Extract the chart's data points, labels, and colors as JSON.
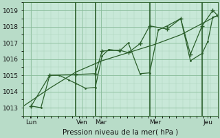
{
  "xlabel": "Pression niveau de la mer( hPa )",
  "bg_color": "#b8dcc8",
  "plot_bg_color": "#c8e8d8",
  "grid_major_color": "#88bb99",
  "grid_minor_color": "#aad4bb",
  "line_color": "#2a5e2a",
  "vline_color": "#2a5e2a",
  "ylim": [
    1012.5,
    1019.5
  ],
  "yticks": [
    1013,
    1014,
    1015,
    1016,
    1017,
    1018,
    1019
  ],
  "xlim": [
    0,
    1.0
  ],
  "xtick_positions": [
    0.04,
    0.3,
    0.4,
    0.68,
    0.95
  ],
  "xtick_labels": [
    "Lun",
    "Ven",
    "Mar",
    "Mer",
    "Jeu"
  ],
  "vline_positions": [
    0.27,
    0.37,
    0.65,
    0.92
  ],
  "trend_x": [
    0.0,
    0.135,
    0.27,
    0.405,
    0.54,
    0.675,
    0.81,
    1.0
  ],
  "trend_y": [
    1013.1,
    1014.2,
    1015.2,
    1015.9,
    1016.4,
    1016.9,
    1017.5,
    1018.7
  ],
  "line2_x": [
    0.04,
    0.09,
    0.135,
    0.185,
    0.235,
    0.27,
    0.32,
    0.37,
    0.405,
    0.44,
    0.495,
    0.54,
    0.6,
    0.65,
    0.695,
    0.74,
    0.81,
    0.86,
    0.92,
    0.95,
    0.975,
    1.0
  ],
  "line2_y": [
    1013.1,
    1013.0,
    1015.0,
    1015.0,
    1014.7,
    1014.5,
    1014.2,
    1014.25,
    1016.2,
    1016.6,
    1016.5,
    1017.0,
    1015.1,
    1015.15,
    1017.8,
    1018.05,
    1018.5,
    1015.9,
    1016.35,
    1017.1,
    1018.6,
    1018.65
  ],
  "line3_x": [
    0.04,
    0.135,
    0.27,
    0.37,
    0.405,
    0.495,
    0.54,
    0.6,
    0.65,
    0.74,
    0.81,
    0.86,
    0.92,
    0.975,
    1.0
  ],
  "line3_y": [
    1013.1,
    1015.0,
    1015.05,
    1015.1,
    1016.5,
    1016.55,
    1016.4,
    1016.95,
    1018.05,
    1017.85,
    1018.5,
    1016.3,
    1018.05,
    1019.0,
    1018.7
  ]
}
